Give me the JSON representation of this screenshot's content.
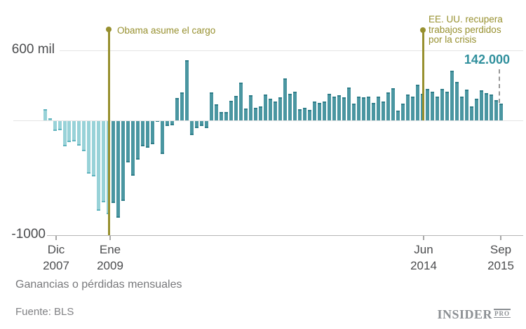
{
  "chart_data": {
    "type": "bar",
    "title": "Ganancias o pérdidas mensuales",
    "source": "Fuente: BLS",
    "ylim": [
      -1000,
      600
    ],
    "grid": "horizontal lines at 600 and 0, bottom axis at -1000",
    "legend_position": "none",
    "months": [
      "2007-12",
      "2008-01",
      "2008-02",
      "2008-03",
      "2008-04",
      "2008-05",
      "2008-06",
      "2008-07",
      "2008-08",
      "2008-09",
      "2008-10",
      "2008-11",
      "2008-12",
      "2009-01",
      "2009-02",
      "2009-03",
      "2009-04",
      "2009-05",
      "2009-06",
      "2009-07",
      "2009-08",
      "2009-09",
      "2009-10",
      "2009-11",
      "2009-12",
      "2010-01",
      "2010-02",
      "2010-03",
      "2010-04",
      "2010-05",
      "2010-06",
      "2010-07",
      "2010-08",
      "2010-09",
      "2010-10",
      "2010-11",
      "2010-12",
      "2011-01",
      "2011-02",
      "2011-03",
      "2011-04",
      "2011-05",
      "2011-06",
      "2011-07",
      "2011-08",
      "2011-09",
      "2011-10",
      "2011-11",
      "2011-12",
      "2012-01",
      "2012-02",
      "2012-03",
      "2012-04",
      "2012-05",
      "2012-06",
      "2012-07",
      "2012-08",
      "2012-09",
      "2012-10",
      "2012-11",
      "2012-12",
      "2013-01",
      "2013-02",
      "2013-03",
      "2013-04",
      "2013-05",
      "2013-06",
      "2013-07",
      "2013-08",
      "2013-09",
      "2013-10",
      "2013-11",
      "2013-12",
      "2014-01",
      "2014-02",
      "2014-03",
      "2014-04",
      "2014-05",
      "2014-06",
      "2014-07",
      "2014-08",
      "2014-09",
      "2014-10",
      "2014-11",
      "2014-12",
      "2015-01",
      "2015-02",
      "2015-03",
      "2015-04",
      "2015-05",
      "2015-06",
      "2015-07",
      "2015-08",
      "2015-09"
    ],
    "values": [
      97,
      15,
      -86,
      -80,
      -214,
      -182,
      -172,
      -210,
      -259,
      -452,
      -474,
      -765,
      -697,
      -798,
      -701,
      -826,
      -684,
      -354,
      -467,
      -327,
      -216,
      -227,
      -198,
      -6,
      -283,
      -40,
      -35,
      189,
      239,
      516,
      -122,
      -61,
      -42,
      -57,
      241,
      137,
      71,
      70,
      168,
      212,
      322,
      102,
      217,
      106,
      122,
      221,
      183,
      164,
      196,
      360,
      226,
      243,
      96,
      110,
      88,
      160,
      150,
      161,
      225,
      203,
      214,
      197,
      280,
      141,
      203,
      199,
      201,
      149,
      202,
      164,
      237,
      274,
      84,
      144,
      222,
      203,
      304,
      229,
      267,
      243,
      203,
      271,
      243,
      423,
      329,
      201,
      266,
      119,
      187,
      260,
      231,
      223,
      173,
      142
    ],
    "style": {
      "color_early_bars": "#98d2d8",
      "color_late_bars": "#4a96a1",
      "dark_from_index": 14,
      "annotation_color": "#97902f",
      "highlight_color": "#2f8f9c"
    }
  },
  "axis": {
    "y_top_label": "600 mil",
    "y_bottom_label": "-1000",
    "x_ticks": [
      {
        "line1": "Dic",
        "line2": "2007"
      },
      {
        "line1": "Ene",
        "line2": "2009"
      },
      {
        "line1": "Jun",
        "line2": "2014"
      },
      {
        "line1": "Sep",
        "line2": "2015"
      }
    ]
  },
  "annotations": {
    "obama": {
      "label": "Obama asume el cargo",
      "month": "2009-01"
    },
    "recovery": {
      "lines": [
        "EE. UU. recupera",
        "trabajos perdidos",
        "por la crisis"
      ],
      "month": "2014-06"
    },
    "last_value": {
      "label": "142.000",
      "month": "2015-09"
    }
  },
  "footer": {
    "caption": "Ganancias o pérdidas mensuales",
    "source": "Fuente: BLS",
    "logo_main": "INSIDER",
    "logo_sub": "PRO"
  }
}
